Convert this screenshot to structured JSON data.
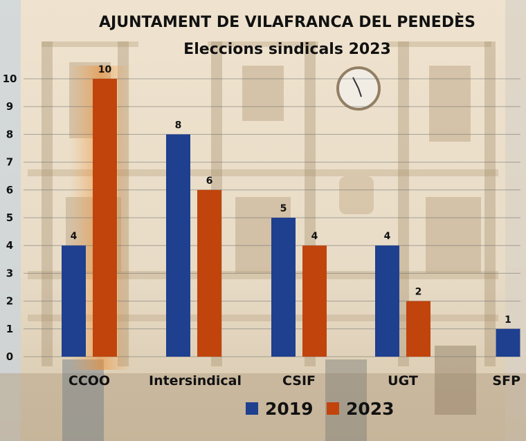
{
  "chart_data": {
    "type": "bar",
    "title": "AJUNTAMENT DE VILAFRANCA DEL PENEDÈS",
    "subtitle": "Eleccions sindicals 2023",
    "xlabel": "",
    "ylabel": "",
    "categories": [
      "CCOO",
      "Intersindical",
      "CSIF",
      "UGT",
      "SFP"
    ],
    "series": [
      {
        "name": "2019",
        "color": "#1f3f8f",
        "values": [
          4,
          8,
          5,
          4,
          1
        ]
      },
      {
        "name": "2023",
        "color": "#c0440c",
        "values": [
          10,
          6,
          4,
          2,
          null
        ]
      }
    ],
    "ylim": [
      0,
      10
    ],
    "yticks": [
      "0",
      "1",
      "2",
      "3",
      "4",
      "5",
      "6",
      "7",
      "8",
      "9",
      "10"
    ],
    "grid": true,
    "legend_position": "bottom"
  }
}
